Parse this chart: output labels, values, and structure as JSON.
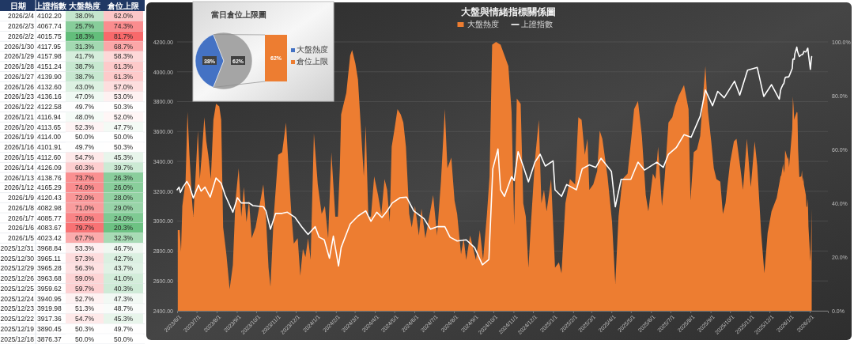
{
  "chart_data": [
    {
      "type": "heatmap",
      "ylabel": "日期",
      "y2label": "上證指數",
      "categories": [
        "大盤熱度",
        "倉位上限"
      ],
      "y_categories": [
        "2026/2/4",
        "2026/2/3",
        "2026/2/2",
        "2026/1/30",
        "2026/1/29",
        "2026/1/28",
        "2026/1/27",
        "2026/1/26",
        "2026/1/23",
        "2026/1/22",
        "2026/1/21",
        "2026/1/20",
        "2026/1/19",
        "2026/1/16",
        "2026/1/15",
        "2026/1/14",
        "2026/1/13",
        "2026/1/12",
        "2026/1/9",
        "2026/1/8",
        "2026/1/7",
        "2026/1/6",
        "2026/1/5",
        "2025/12/31",
        "2025/12/30",
        "2025/12/29",
        "2025/12/26",
        "2025/12/25",
        "2025/12/24",
        "2025/12/23",
        "2025/12/22",
        "2025/12/19",
        "2025/12/18"
      ],
      "y2_categories": [
        "4102.20",
        "4067.74",
        "4015.75",
        "4117.95",
        "4157.98",
        "4151.24",
        "4139.90",
        "4132.60",
        "4136.16",
        "4122.58",
        "4116.94",
        "4113.65",
        "4114.00",
        "4101.91",
        "4112.60",
        "4126.09",
        "4138.76",
        "4165.29",
        "4120.43",
        "4082.98",
        "4085.77",
        "4083.67",
        "4023.42",
        "3968.84",
        "3965.11",
        "3965.28",
        "3963.68",
        "3959.62",
        "3940.95",
        "3919.98",
        "3917.36",
        "3890.45",
        "3876.37"
      ],
      "cells": [
        [
          38.0,
          62.0
        ],
        [
          25.7,
          74.3
        ],
        [
          18.3,
          81.7
        ],
        [
          31.3,
          68.7
        ],
        [
          41.7,
          58.3
        ],
        [
          38.7,
          61.3
        ],
        [
          38.7,
          61.3
        ],
        [
          43.0,
          57.0
        ],
        [
          47.0,
          53.0
        ],
        [
          49.7,
          50.3
        ],
        [
          48.0,
          52.0
        ],
        [
          52.3,
          47.7
        ],
        [
          50.0,
          50.0
        ],
        [
          49.7,
          50.3
        ],
        [
          54.7,
          45.3
        ],
        [
          60.3,
          39.7
        ],
        [
          73.7,
          26.3
        ],
        [
          74.0,
          26.0
        ],
        [
          72.0,
          28.0
        ],
        [
          71.0,
          29.0
        ],
        [
          76.0,
          24.0
        ],
        [
          79.7,
          20.3
        ],
        [
          67.7,
          32.3
        ],
        [
          53.3,
          46.7
        ],
        [
          57.3,
          42.7
        ],
        [
          56.3,
          43.7
        ],
        [
          59.0,
          41.0
        ],
        [
          59.7,
          40.3
        ],
        [
          52.7,
          47.3
        ],
        [
          51.3,
          48.7
        ],
        [
          54.7,
          45.3
        ],
        [
          50.3,
          49.7
        ],
        [
          50.0,
          50.0
        ]
      ],
      "cell_labels": [
        [
          "38.0%",
          "62.0%"
        ],
        [
          "25.7%",
          "74.3%"
        ],
        [
          "18.3%",
          "81.7%"
        ],
        [
          "31.3%",
          "68.7%"
        ],
        [
          "41.7%",
          "58.3%"
        ],
        [
          "38.7%",
          "61.3%"
        ],
        [
          "38.7%",
          "61.3%"
        ],
        [
          "43.0%",
          "57.0%"
        ],
        [
          "47.0%",
          "53.0%"
        ],
        [
          "49.7%",
          "50.3%"
        ],
        [
          "48.0%",
          "52.0%"
        ],
        [
          "52.3%",
          "47.7%"
        ],
        [
          "50.0%",
          "50.0%"
        ],
        [
          "49.7%",
          "50.3%"
        ],
        [
          "54.7%",
          "45.3%"
        ],
        [
          "60.3%",
          "39.7%"
        ],
        [
          "73.7%",
          "26.3%"
        ],
        [
          "74.0%",
          "26.0%"
        ],
        [
          "72.0%",
          "28.0%"
        ],
        [
          "71.0%",
          "29.0%"
        ],
        [
          "76.0%",
          "24.0%"
        ],
        [
          "79.7%",
          "20.3%"
        ],
        [
          "67.7%",
          "32.3%"
        ],
        [
          "53.3%",
          "46.7%"
        ],
        [
          "57.3%",
          "42.7%"
        ],
        [
          "56.3%",
          "43.7%"
        ],
        [
          "59.0%",
          "41.0%"
        ],
        [
          "59.7%",
          "40.3%"
        ],
        [
          "52.7%",
          "47.3%"
        ],
        [
          "51.3%",
          "48.7%"
        ],
        [
          "54.7%",
          "45.3%"
        ],
        [
          "50.3%",
          "49.7%"
        ],
        [
          "50.0%",
          "50.0%"
        ]
      ]
    },
    {
      "type": "area",
      "title": "大盤與情緒指標關係圖",
      "legend": "top",
      "grid": "y",
      "xlim": [
        "2023-06-01",
        "2026-03-01"
      ],
      "xticks": [
        {
          "value": "2023-06-01",
          "label": "2023/6/1"
        },
        {
          "value": "2023-07-01",
          "label": "2023/7/1"
        },
        {
          "value": "2023-08-01",
          "label": "2023/8/1"
        },
        {
          "value": "2023-09-01",
          "label": "2023/9/1"
        },
        {
          "value": "2023-10-01",
          "label": "2023/10/1"
        },
        {
          "value": "2023-11-01",
          "label": "2023/11/1"
        },
        {
          "value": "2023-12-01",
          "label": "2023/12/1"
        },
        {
          "value": "2024-01-01",
          "label": "2024/1/1"
        },
        {
          "value": "2024-02-01",
          "label": "2024/2/1"
        },
        {
          "value": "2024-03-01",
          "label": "2024/3/1"
        },
        {
          "value": "2024-04-01",
          "label": "2024/4/1"
        },
        {
          "value": "2024-05-01",
          "label": "2024/5/1"
        },
        {
          "value": "2024-06-01",
          "label": "2024/6/1"
        },
        {
          "value": "2024-07-01",
          "label": "2024/7/1"
        },
        {
          "value": "2024-08-01",
          "label": "2024/8/1"
        },
        {
          "value": "2024-09-01",
          "label": "2024/9/1"
        },
        {
          "value": "2024-10-01",
          "label": "2024/10/1"
        },
        {
          "value": "2024-11-01",
          "label": "2024/11/1"
        },
        {
          "value": "2024-12-01",
          "label": "2024/12/1"
        },
        {
          "value": "2025-01-01",
          "label": "2025/1/1"
        },
        {
          "value": "2025-02-01",
          "label": "2025/2/1"
        },
        {
          "value": "2025-03-01",
          "label": "2025/3/1"
        },
        {
          "value": "2025-04-01",
          "label": "2025/4/1"
        },
        {
          "value": "2025-05-01",
          "label": "2025/5/1"
        },
        {
          "value": "2025-06-01",
          "label": "2025/6/1"
        },
        {
          "value": "2025-07-01",
          "label": "2025/7/1"
        },
        {
          "value": "2025-08-01",
          "label": "2025/8/1"
        },
        {
          "value": "2025-09-01",
          "label": "2025/9/1"
        },
        {
          "value": "2025-10-01",
          "label": "2025/10/1"
        },
        {
          "value": "2025-11-01",
          "label": "2025/11/1"
        },
        {
          "value": "2025-12-01",
          "label": "2025/12/1"
        },
        {
          "value": "2026-01-01",
          "label": "2026/1/1"
        },
        {
          "value": "2026-02-01",
          "label": "2026/2/1"
        }
      ],
      "ylim": [
        2400,
        4200
      ],
      "yticks": [
        {
          "value": 2400,
          "label": "2400.00"
        },
        {
          "value": 2600,
          "label": "2600.00"
        },
        {
          "value": 2800,
          "label": "2800.00"
        },
        {
          "value": 3000,
          "label": "3000.00"
        },
        {
          "value": 3200,
          "label": "3200.00"
        },
        {
          "value": 3400,
          "label": "3400.00"
        },
        {
          "value": 3600,
          "label": "3600.00"
        },
        {
          "value": 3800,
          "label": "3800.00"
        },
        {
          "value": 4000,
          "label": "4000.00"
        },
        {
          "value": 4200,
          "label": "4200.00"
        }
      ],
      "y2lim": [
        0,
        100
      ],
      "y2ticks": [
        {
          "value": 0,
          "label": "0.0%"
        },
        {
          "value": 20,
          "label": "20.0%"
        },
        {
          "value": 40,
          "label": "40.0%"
        },
        {
          "value": 60,
          "label": "60.0%"
        },
        {
          "value": 80,
          "label": "80.0%"
        },
        {
          "value": 100,
          "label": "100.0%"
        }
      ],
      "series": [
        {
          "name": "大盤熱度",
          "type": "area",
          "axis": "y2",
          "color": "#ed7d31",
          "x": [
            "2023-06-02",
            "2023-06-05",
            "2023-06-07",
            "2023-06-09",
            "2023-06-14",
            "2023-06-17",
            "2023-06-20",
            "2023-06-24",
            "2023-06-26",
            "2023-06-29",
            "2023-07-03",
            "2023-07-06",
            "2023-07-09",
            "2023-07-13",
            "2023-07-16",
            "2023-07-19",
            "2023-07-23",
            "2023-07-27",
            "2023-07-31",
            "2023-08-05",
            "2023-08-08",
            "2023-08-11",
            "2023-08-16",
            "2023-08-21",
            "2023-08-26",
            "2023-08-30",
            "2023-09-04",
            "2023-09-08",
            "2023-09-12",
            "2023-09-16",
            "2023-09-20",
            "2023-09-24",
            "2023-09-30",
            "2023-10-12",
            "2023-10-16",
            "2023-10-20",
            "2023-10-23",
            "2023-10-28",
            "2023-11-04",
            "2023-11-10",
            "2023-11-16",
            "2023-11-20",
            "2023-11-24",
            "2023-11-28",
            "2023-12-04",
            "2023-12-08",
            "2023-12-12",
            "2023-12-16",
            "2023-12-20",
            "2023-12-24",
            "2023-12-29",
            "2024-01-04",
            "2024-01-10",
            "2024-01-15",
            "2024-01-20",
            "2024-01-25",
            "2024-01-31",
            "2024-02-04",
            "2024-02-07",
            "2024-02-09",
            "2024-02-17",
            "2024-02-23",
            "2024-02-26",
            "2024-03-02",
            "2024-03-06",
            "2024-03-10",
            "2024-03-15",
            "2024-03-18",
            "2024-03-22",
            "2024-03-26",
            "2024-03-31",
            "2024-04-06",
            "2024-04-11",
            "2024-04-16",
            "2024-04-20",
            "2024-04-24",
            "2024-04-27",
            "2024-05-01",
            "2024-05-06",
            "2024-05-11",
            "2024-05-15",
            "2024-05-19",
            "2024-05-24",
            "2024-05-28",
            "2024-06-02",
            "2024-06-08",
            "2024-06-12",
            "2024-06-18",
            "2024-06-24",
            "2024-06-30",
            "2024-07-06",
            "2024-07-12",
            "2024-07-18",
            "2024-07-22",
            "2024-07-28",
            "2024-08-02",
            "2024-08-06",
            "2024-08-12",
            "2024-08-16",
            "2024-08-20",
            "2024-08-26",
            "2024-09-04",
            "2024-09-10",
            "2024-09-15",
            "2024-09-21",
            "2024-09-25",
            "2024-09-29",
            "2024-10-05",
            "2024-10-12",
            "2024-10-18",
            "2024-10-24",
            "2024-10-29",
            "2024-11-02",
            "2024-11-06",
            "2024-11-12",
            "2024-11-16",
            "2024-11-20",
            "2024-11-24",
            "2024-11-28",
            "2024-12-04",
            "2024-12-10",
            "2024-12-14",
            "2024-12-18",
            "2024-12-22",
            "2024-12-29",
            "2025-01-04",
            "2025-01-10",
            "2025-01-14",
            "2025-01-20",
            "2025-01-27",
            "2025-02-04",
            "2025-02-09",
            "2025-02-14",
            "2025-02-19",
            "2025-02-23",
            "2025-02-26",
            "2025-03-04",
            "2025-03-10",
            "2025-03-14",
            "2025-03-18",
            "2025-03-26",
            "2025-04-02",
            "2025-04-07",
            "2025-04-12",
            "2025-04-18",
            "2025-04-26",
            "2025-05-02",
            "2025-05-06",
            "2025-05-12",
            "2025-05-18",
            "2025-05-24",
            "2025-05-28",
            "2025-06-04",
            "2025-06-08",
            "2025-06-12",
            "2025-06-18",
            "2025-06-22",
            "2025-06-28",
            "2025-07-04",
            "2025-07-08",
            "2025-07-14",
            "2025-07-22",
            "2025-07-29",
            "2025-08-01",
            "2025-08-06",
            "2025-08-11",
            "2025-08-16",
            "2025-08-21",
            "2025-08-24",
            "2025-08-28",
            "2025-09-02",
            "2025-09-06",
            "2025-09-10",
            "2025-09-16",
            "2025-09-20",
            "2025-09-24",
            "2025-10-01",
            "2025-10-07",
            "2025-10-11",
            "2025-10-17",
            "2025-10-21",
            "2025-10-27",
            "2025-11-02",
            "2025-11-08",
            "2025-11-12",
            "2025-11-18",
            "2025-11-23",
            "2025-11-28",
            "2025-12-04",
            "2025-12-12",
            "2025-12-18",
            "2025-12-19",
            "2025-12-22",
            "2025-12-23",
            "2025-12-24",
            "2025-12-25",
            "2025-12-26",
            "2025-12-29",
            "2025-12-30",
            "2025-12-31",
            "2026-01-05",
            "2026-01-06",
            "2026-01-07",
            "2026-01-08",
            "2026-01-09",
            "2026-01-12",
            "2026-01-13",
            "2026-01-14",
            "2026-01-15",
            "2026-01-16",
            "2026-01-19",
            "2026-01-20",
            "2026-01-21",
            "2026-01-22",
            "2026-01-23",
            "2026-01-26",
            "2026-01-27",
            "2026-01-28",
            "2026-01-29",
            "2026-01-30",
            "2026-02-02",
            "2026-02-03",
            "2026-02-04"
          ],
          "values": [
            30,
            30,
            22,
            39,
            48,
            74,
            58,
            41,
            35,
            48,
            67,
            49,
            58,
            72,
            63,
            58,
            49,
            71,
            77,
            76,
            71,
            31,
            21,
            8,
            17,
            41,
            53,
            35,
            46,
            33,
            41,
            27,
            31,
            47,
            35,
            16,
            9,
            35,
            58,
            59,
            70,
            53,
            37,
            25,
            27,
            13,
            23,
            20,
            27,
            19,
            66,
            47,
            36,
            39,
            27,
            59,
            35,
            35,
            53,
            73,
            81,
            95,
            97,
            92,
            86,
            70,
            50,
            69,
            35,
            35,
            50,
            43,
            36,
            49,
            45,
            33,
            61,
            67,
            75,
            73,
            70,
            61,
            36,
            31,
            39,
            28,
            38,
            27,
            35,
            43,
            28,
            48,
            75,
            53,
            57,
            41,
            36,
            21,
            27,
            19,
            28,
            19,
            30,
            19,
            36,
            50,
            99,
            100,
            99,
            95,
            91,
            74,
            32,
            79,
            77,
            40,
            35,
            16,
            33,
            56,
            71,
            40,
            45,
            37,
            49,
            16,
            18,
            14,
            40,
            49,
            47,
            72,
            71,
            58,
            64,
            45,
            47,
            52,
            67,
            64,
            50,
            33,
            10,
            35,
            49,
            51,
            65,
            75,
            78,
            65,
            43,
            37,
            51,
            49,
            61,
            39,
            49,
            70,
            72,
            76,
            80,
            84,
            75,
            41,
            59,
            60,
            65,
            82,
            91,
            74,
            63,
            53,
            49,
            48,
            36,
            40,
            55,
            63,
            64,
            53,
            45,
            64,
            46,
            63,
            54,
            29,
            14,
            29,
            37,
            42,
            50.0,
            50.3,
            54.7,
            51.3,
            52.7,
            59.7,
            59.0,
            56.3,
            57.3,
            53.3,
            67.7,
            79.7,
            76.0,
            71.0,
            72.0,
            74.0,
            73.7,
            60.3,
            54.7,
            49.7,
            50.0,
            52.3,
            48.0,
            49.7,
            47.0,
            43.0,
            38.7,
            38.7,
            41.7,
            31.3,
            18.3,
            25.7,
            38.0
          ]
        },
        {
          "name": "上證指數",
          "type": "line",
          "axis": "y",
          "color": "#ffffff",
          "x": [
            "2023-06-01",
            "2023-06-04",
            "2023-06-06",
            "2023-06-10",
            "2023-06-16",
            "2023-06-20",
            "2023-06-26",
            "2023-07-04",
            "2023-07-08",
            "2023-07-14",
            "2023-07-22",
            "2023-07-31",
            "2023-08-08",
            "2023-08-14",
            "2023-08-26",
            "2023-09-02",
            "2023-09-08",
            "2023-09-20",
            "2023-09-26",
            "2023-10-12",
            "2023-10-16",
            "2023-10-23",
            "2023-10-31",
            "2023-11-10",
            "2023-11-18",
            "2023-11-30",
            "2023-12-10",
            "2023-12-20",
            "2023-12-31",
            "2024-01-06",
            "2024-01-14",
            "2024-01-22",
            "2024-01-28",
            "2024-02-05",
            "2024-02-09",
            "2024-02-23",
            "2024-03-06",
            "2024-03-18",
            "2024-03-26",
            "2024-04-04",
            "2024-04-12",
            "2024-04-20",
            "2024-04-28",
            "2024-05-10",
            "2024-05-20",
            "2024-05-31",
            "2024-06-16",
            "2024-06-26",
            "2024-07-06",
            "2024-07-18",
            "2024-07-26",
            "2024-08-06",
            "2024-08-20",
            "2024-09-02",
            "2024-09-14",
            "2024-09-24",
            "2024-09-30",
            "2024-10-08",
            "2024-10-12",
            "2024-10-18",
            "2024-10-29",
            "2024-11-02",
            "2024-11-08",
            "2024-11-16",
            "2024-11-24",
            "2024-12-04",
            "2024-12-12",
            "2024-12-20",
            "2025-01-01",
            "2025-01-04",
            "2025-01-14",
            "2025-01-22",
            "2025-02-06",
            "2025-02-15",
            "2025-02-26",
            "2025-03-08",
            "2025-03-16",
            "2025-04-01",
            "2025-04-07",
            "2025-04-16",
            "2025-05-01",
            "2025-05-12",
            "2025-05-22",
            "2025-06-10",
            "2025-06-20",
            "2025-06-28",
            "2025-07-10",
            "2025-07-22",
            "2025-08-02",
            "2025-08-16",
            "2025-08-24",
            "2025-09-04",
            "2025-09-12",
            "2025-09-22",
            "2025-10-08",
            "2025-10-16",
            "2025-10-28",
            "2025-11-12",
            "2025-11-22",
            "2025-12-04",
            "2025-12-16",
            "2025-12-18",
            "2025-12-19",
            "2025-12-22",
            "2025-12-23",
            "2025-12-24",
            "2025-12-25",
            "2025-12-26",
            "2025-12-29",
            "2025-12-30",
            "2025-12-31",
            "2026-01-05",
            "2026-01-06",
            "2026-01-07",
            "2026-01-08",
            "2026-01-09",
            "2026-01-12",
            "2026-01-13",
            "2026-01-14",
            "2026-01-15",
            "2026-01-16",
            "2026-01-19",
            "2026-01-20",
            "2026-01-21",
            "2026-01-22",
            "2026-01-23",
            "2026-01-26",
            "2026-01-27",
            "2026-01-28",
            "2026-01-29",
            "2026-01-30",
            "2026-02-02",
            "2026-02-03",
            "2026-02-04"
          ],
          "values": [
            3210,
            3228,
            3192,
            3228,
            3266,
            3236,
            3154,
            3242,
            3201,
            3228,
            3161,
            3289,
            3254,
            3175,
            3060,
            3157,
            3122,
            3122,
            3104,
            3096,
            3069,
            2946,
            3052,
            3052,
            3060,
            3025,
            2964,
            2911,
            2963,
            2893,
            2875,
            2752,
            2900,
            2700,
            2823,
            2981,
            3034,
            3069,
            2999,
            3060,
            3025,
            3069,
            3122,
            3157,
            3161,
            3069,
            3016,
            2946,
            2963,
            2963,
            2893,
            2867,
            2875,
            2823,
            2708,
            2743,
            3351,
            3483,
            3210,
            3166,
            3298,
            3272,
            3465,
            3368,
            3263,
            3395,
            3448,
            3369,
            3404,
            3210,
            3166,
            3245,
            3210,
            3351,
            3377,
            3360,
            3421,
            3333,
            3096,
            3280,
            3280,
            3395,
            3342,
            3395,
            3360,
            3448,
            3492,
            3579,
            3562,
            3703,
            3878,
            3773,
            3869,
            3826,
            3937,
            3844,
            4011,
            4029,
            3835,
            3914,
            3817,
            3876,
            3890,
            3917,
            3920,
            3941,
            3960,
            3964,
            3965,
            3965,
            3969,
            4023,
            4084,
            4086,
            4083,
            4120,
            4165,
            4139,
            4126,
            4113,
            4102,
            4114,
            4114,
            4117,
            4123,
            4136,
            4133,
            4140,
            4151,
            4158,
            4118,
            4016,
            4068,
            4102
          ]
        }
      ]
    },
    {
      "type": "pie",
      "title": "當日倉位上限圖",
      "legend": "right",
      "categories": [
        "大盤熱度",
        null
      ],
      "values": [
        38,
        62
      ],
      "colors": [
        "#4472c4",
        "#a5a5a5"
      ],
      "value_labels": [
        "38%",
        "62%"
      ]
    },
    {
      "type": "other",
      "legend": "right",
      "categories": [
        null
      ],
      "series": [
        {
          "name": "倉位上限",
          "color": "#ed7d31",
          "values": [
            62
          ],
          "value_labels": [
            "62%"
          ]
        }
      ]
    }
  ]
}
